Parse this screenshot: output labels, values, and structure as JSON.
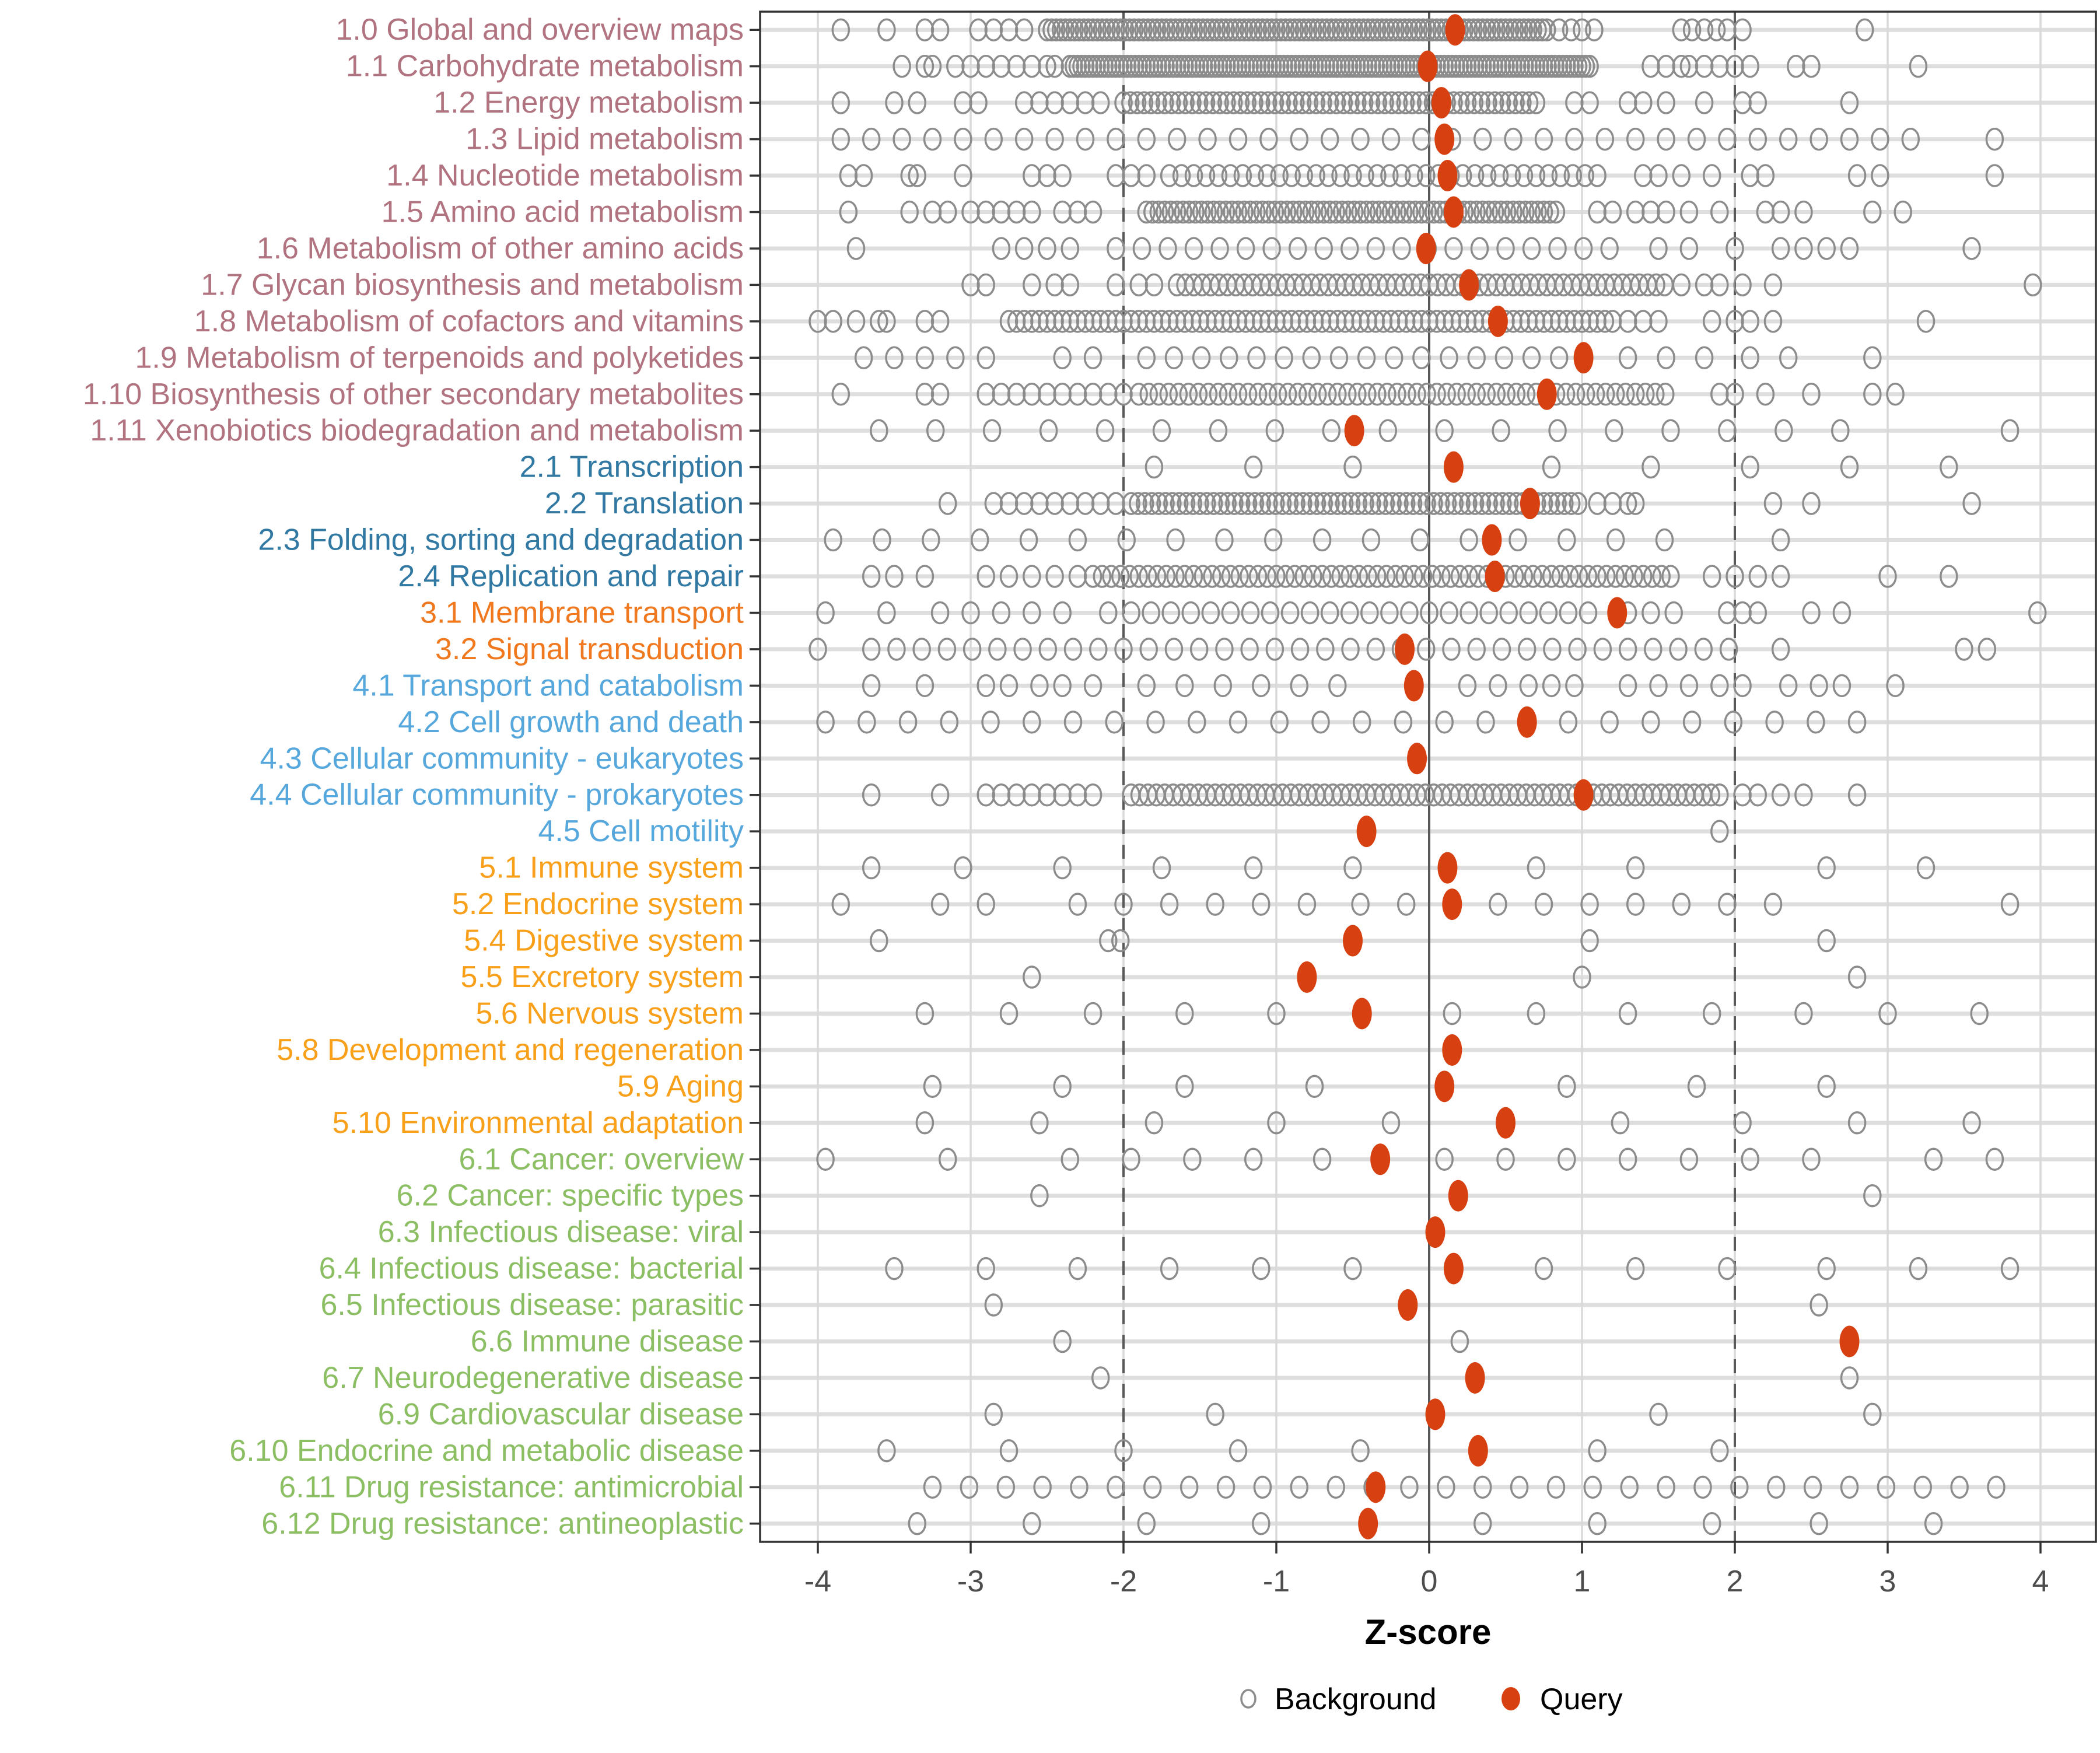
{
  "chart_data": {
    "type": "scatter",
    "variant": "strip-dot-plot",
    "title": "",
    "xlabel": "Z-score",
    "xlim": [
      -4.38,
      4.36
    ],
    "x_ticks": [
      -4,
      -3,
      -2,
      -1,
      0,
      1,
      2,
      3,
      4
    ],
    "reference_lines": {
      "solid": [
        0
      ],
      "dashed": [
        -2,
        2
      ]
    },
    "grid": true,
    "legend_position": "bottom",
    "legend": [
      {
        "label": "Background",
        "marker": "open-circle",
        "color": "#8c8c8c"
      },
      {
        "label": "Query",
        "marker": "filled-circle",
        "color": "#d74112"
      }
    ],
    "colors": {
      "query": "#d74112",
      "background_stroke": "#8c8c8c",
      "row_stripe": "#dedede",
      "gridline": "#d9d9d9",
      "reference": "#595959",
      "panel_border": "#333333",
      "tick_label": "#4d4d4d",
      "axis_title": "#000000"
    },
    "group_colors": {
      "g1": "#b0737f",
      "g2": "#3179a3",
      "g3": "#f0781e",
      "g4": "#56a7dc",
      "g5": "#f9a01b",
      "g6": "#8cbe64"
    },
    "rows": [
      {
        "label": "1.0 Global and overview maps",
        "group": "g1",
        "query": 0.17,
        "band": [
          -2.5,
          0.78,
          0.03
        ],
        "pts": [
          -3.85,
          -3.55,
          -3.3,
          -3.2,
          -2.95,
          -2.85,
          -2.75,
          -2.65,
          0.85,
          0.93,
          1.0,
          1.08,
          1.65,
          1.72,
          1.8,
          1.88,
          1.95,
          2.05,
          2.85
        ]
      },
      {
        "label": "1.1 Carbohydrate metabolism",
        "group": "g1",
        "query": -0.01,
        "band": [
          -2.35,
          1.05,
          0.025
        ],
        "pts": [
          -3.45,
          -3.3,
          -3.25,
          -3.1,
          -3.0,
          -2.9,
          -2.8,
          -2.7,
          -2.6,
          -2.5,
          -2.45,
          1.45,
          1.55,
          1.65,
          1.7,
          1.8,
          1.9,
          2.0,
          2.1,
          2.4,
          2.5,
          3.2
        ]
      },
      {
        "label": "1.2 Energy metabolism",
        "group": "g1",
        "query": 0.08,
        "band": [
          -2.0,
          0.7,
          0.045
        ],
        "pts": [
          -3.85,
          -3.5,
          -3.35,
          -3.05,
          -2.95,
          -2.65,
          -2.55,
          -2.45,
          -2.35,
          -2.25,
          -2.15,
          0.95,
          1.05,
          1.3,
          1.4,
          1.55,
          1.8,
          2.05,
          2.15,
          2.75
        ]
      },
      {
        "label": "1.3 Lipid metabolism",
        "group": "g1",
        "query": 0.1,
        "band": [
          -3.85,
          3.3,
          0.2
        ],
        "pts": [
          3.7
        ]
      },
      {
        "label": "1.4 Nucleotide metabolism",
        "group": "g1",
        "query": 0.12,
        "band": [
          -1.7,
          1.1,
          0.08
        ],
        "pts": [
          -3.8,
          -3.7,
          -3.4,
          -3.35,
          -3.05,
          -2.6,
          -2.5,
          -2.4,
          -2.05,
          -1.95,
          -1.85,
          1.4,
          1.5,
          1.65,
          1.85,
          2.1,
          2.2,
          2.8,
          2.95,
          3.7
        ]
      },
      {
        "label": "1.5 Amino acid metabolism",
        "group": "g1",
        "query": 0.16,
        "band": [
          -1.85,
          0.85,
          0.04
        ],
        "pts": [
          -3.8,
          -3.4,
          -3.25,
          -3.15,
          -3.0,
          -2.9,
          -2.8,
          -2.7,
          -2.6,
          -2.4,
          -2.3,
          -2.2,
          1.1,
          1.2,
          1.35,
          1.45,
          1.55,
          1.7,
          1.9,
          2.2,
          2.3,
          2.45,
          2.9,
          3.1
        ]
      },
      {
        "label": "1.6 Metabolism of other amino acids",
        "group": "g1",
        "query": -0.02,
        "band": [
          -2.05,
          1.25,
          0.17
        ],
        "pts": [
          -3.75,
          -2.8,
          -2.65,
          -2.5,
          -2.35,
          1.5,
          1.7,
          2.0,
          2.3,
          2.45,
          2.6,
          2.75,
          3.55
        ]
      },
      {
        "label": "1.7 Glycan biosynthesis and metabolism",
        "group": "g1",
        "query": 0.26,
        "band": [
          -1.65,
          1.55,
          0.055
        ],
        "pts": [
          -3.0,
          -2.9,
          -2.6,
          -2.45,
          -2.35,
          -2.05,
          -1.9,
          -1.8,
          1.65,
          1.8,
          1.9,
          2.05,
          2.25,
          3.95
        ]
      },
      {
        "label": "1.8 Metabolism of cofactors and vitamins",
        "group": "g1",
        "query": 0.45,
        "band": [
          -2.75,
          1.2,
          0.05
        ],
        "pts": [
          -4.0,
          -3.9,
          -3.75,
          -3.6,
          -3.55,
          -3.3,
          -3.2,
          1.3,
          1.4,
          1.5,
          1.85,
          2.0,
          2.1,
          2.25,
          3.25
        ]
      },
      {
        "label": "1.9 Metabolism of terpenoids and polyketides",
        "group": "g1",
        "query": 1.01,
        "band": [
          -1.85,
          0.9,
          0.18
        ],
        "pts": [
          -3.7,
          -3.5,
          -3.3,
          -3.1,
          -2.9,
          -2.4,
          -2.2,
          1.3,
          1.55,
          1.8,
          2.1,
          2.35,
          2.9
        ]
      },
      {
        "label": "1.10 Biosynthesis of other secondary metabolites",
        "group": "g1",
        "query": 0.77,
        "band": [
          -1.9,
          1.6,
          0.065
        ],
        "pts": [
          -3.85,
          -3.3,
          -3.2,
          -2.9,
          -2.8,
          -2.7,
          -2.6,
          -2.5,
          -2.4,
          -2.3,
          -2.2,
          -2.1,
          -2.0,
          1.9,
          2.0,
          2.2,
          2.5,
          2.9,
          3.05
        ]
      },
      {
        "label": "1.11 Xenobiotics biodegradation and metabolism",
        "group": "g1",
        "query": -0.49,
        "band": [
          -3.6,
          3.0,
          0.37
        ],
        "pts": [
          3.8
        ]
      },
      {
        "label": "2.1 Transcription",
        "group": "g2",
        "query": 0.16,
        "band": null,
        "pts": [
          -1.8,
          -1.15,
          -0.5,
          0.8,
          1.45,
          2.1,
          2.75,
          3.4
        ]
      },
      {
        "label": "2.2 Translation",
        "group": "g2",
        "query": 0.66,
        "band": [
          -1.95,
          1.0,
          0.045
        ],
        "pts": [
          -3.15,
          -2.85,
          -2.75,
          -2.65,
          -2.55,
          -2.45,
          -2.35,
          -2.25,
          -2.15,
          -2.05,
          1.1,
          1.2,
          1.3,
          1.35,
          2.25,
          2.5,
          3.55
        ]
      },
      {
        "label": "2.3 Folding, sorting and degradation",
        "group": "g2",
        "query": 0.41,
        "band": [
          -3.9,
          1.75,
          0.32
        ],
        "pts": [
          2.3
        ]
      },
      {
        "label": "2.4 Replication and repair",
        "group": "g2",
        "query": 0.43,
        "band": [
          -2.2,
          1.6,
          0.06
        ],
        "pts": [
          -3.65,
          -3.5,
          -3.3,
          -2.9,
          -2.75,
          -2.6,
          -2.45,
          -2.3,
          1.85,
          2.0,
          2.15,
          2.3,
          3.0,
          3.4
        ]
      },
      {
        "label": "3.1 Membrane transport",
        "group": "g3",
        "query": 1.23,
        "band": [
          -1.95,
          1.1,
          0.13
        ],
        "pts": [
          -3.95,
          -3.55,
          -3.2,
          -3.0,
          -2.8,
          -2.6,
          -2.4,
          -2.1,
          1.3,
          1.45,
          1.6,
          1.95,
          2.05,
          2.15,
          2.5,
          2.7,
          3.98
        ]
      },
      {
        "label": "3.2 Signal transduction",
        "group": "g3",
        "query": -0.16,
        "band": [
          -3.65,
          2.0,
          0.165
        ],
        "pts": [
          -4.0,
          2.3,
          3.5,
          3.65
        ]
      },
      {
        "label": "4.1 Transport and catabolism",
        "group": "g4",
        "query": -0.1,
        "band": null,
        "pts": [
          -3.65,
          -3.3,
          -2.9,
          -2.75,
          -2.55,
          -2.4,
          -2.2,
          -1.85,
          -1.6,
          -1.35,
          -1.1,
          -0.85,
          -0.6,
          0.25,
          0.45,
          0.65,
          0.8,
          0.95,
          1.3,
          1.5,
          1.7,
          1.9,
          2.05,
          2.35,
          2.55,
          2.7,
          3.05
        ]
      },
      {
        "label": "4.2 Cell growth and death",
        "group": "g4",
        "query": 0.64,
        "band": [
          -3.95,
          3.05,
          0.27
        ],
        "pts": []
      },
      {
        "label": "4.3 Cellular community - eukaryotes",
        "group": "g4",
        "query": -0.08,
        "band": null,
        "pts": []
      },
      {
        "label": "4.4 Cellular community - prokaryotes",
        "group": "g4",
        "query": 1.01,
        "band": [
          -1.95,
          1.9,
          0.055
        ],
        "pts": [
          -3.65,
          -3.2,
          -2.9,
          -2.8,
          -2.7,
          -2.6,
          -2.5,
          -2.4,
          -2.3,
          -2.2,
          2.05,
          2.15,
          2.3,
          2.45,
          2.8
        ]
      },
      {
        "label": "4.5 Cell motility",
        "group": "g4",
        "query": -0.41,
        "band": null,
        "pts": [
          1.9
        ]
      },
      {
        "label": "5.1 Immune system",
        "group": "g5",
        "query": 0.12,
        "band": null,
        "pts": [
          -3.65,
          -3.05,
          -2.4,
          -1.75,
          -1.15,
          -0.5,
          0.7,
          1.35,
          2.6,
          3.25
        ]
      },
      {
        "label": "5.2 Endocrine system",
        "group": "g5",
        "query": 0.15,
        "band": null,
        "pts": [
          -3.85,
          -3.2,
          -2.9,
          -2.3,
          -2.0,
          -1.7,
          -1.4,
          -1.1,
          -0.8,
          -0.45,
          -0.15,
          0.45,
          0.75,
          1.05,
          1.35,
          1.65,
          1.95,
          2.25,
          3.8
        ]
      },
      {
        "label": "5.4 Digestive system",
        "group": "g5",
        "query": -0.5,
        "band": null,
        "pts": [
          -3.6,
          -2.1,
          -2.02,
          1.05,
          2.6
        ]
      },
      {
        "label": "5.5 Excretory system",
        "group": "g5",
        "query": -0.8,
        "band": null,
        "pts": [
          -2.6,
          1.0,
          2.8
        ]
      },
      {
        "label": "5.6 Nervous system",
        "group": "g5",
        "query": -0.44,
        "band": null,
        "pts": [
          -3.3,
          -2.75,
          -2.2,
          -1.6,
          -1.0,
          0.15,
          0.7,
          1.3,
          1.85,
          2.45,
          3.0,
          3.6
        ]
      },
      {
        "label": "5.8 Development and regeneration",
        "group": "g5",
        "query": 0.15,
        "band": null,
        "pts": []
      },
      {
        "label": "5.9 Aging",
        "group": "g5",
        "query": 0.1,
        "band": null,
        "pts": [
          -3.25,
          -2.4,
          -1.6,
          -0.75,
          0.9,
          1.75,
          2.6
        ]
      },
      {
        "label": "5.10 Environmental adaptation",
        "group": "g5",
        "query": 0.5,
        "band": null,
        "pts": [
          -3.3,
          -2.55,
          -1.8,
          -1.0,
          -0.25,
          1.25,
          2.05,
          2.8,
          3.55
        ]
      },
      {
        "label": "6.1 Cancer: overview",
        "group": "g6",
        "query": -0.32,
        "band": null,
        "pts": [
          -3.95,
          -3.15,
          -2.35,
          -1.95,
          -1.55,
          -1.15,
          -0.7,
          0.1,
          0.5,
          0.9,
          1.3,
          1.7,
          2.1,
          2.5,
          3.3,
          3.7
        ]
      },
      {
        "label": "6.2 Cancer: specific types",
        "group": "g6",
        "query": 0.19,
        "band": null,
        "pts": [
          -2.55,
          2.9
        ]
      },
      {
        "label": "6.3 Infectious disease: viral",
        "group": "g6",
        "query": 0.04,
        "band": null,
        "pts": []
      },
      {
        "label": "6.4 Infectious disease: bacterial",
        "group": "g6",
        "query": 0.16,
        "band": null,
        "pts": [
          -3.5,
          -2.9,
          -2.3,
          -1.7,
          -1.1,
          -0.5,
          0.75,
          1.35,
          1.95,
          2.6,
          3.2,
          3.8
        ]
      },
      {
        "label": "6.5 Infectious disease: parasitic",
        "group": "g6",
        "query": -0.14,
        "band": null,
        "pts": [
          -2.85,
          2.55
        ]
      },
      {
        "label": "6.6 Immune disease",
        "group": "g6",
        "query": 2.75,
        "band": null,
        "pts": [
          -2.4,
          0.2
        ]
      },
      {
        "label": "6.7 Neurodegenerative disease",
        "group": "g6",
        "query": 0.3,
        "band": null,
        "pts": [
          -2.15,
          2.75
        ]
      },
      {
        "label": "6.9 Cardiovascular disease",
        "group": "g6",
        "query": 0.04,
        "band": null,
        "pts": [
          -2.85,
          -1.4,
          1.5,
          2.9
        ]
      },
      {
        "label": "6.10 Endocrine and metabolic disease",
        "group": "g6",
        "query": 0.32,
        "band": null,
        "pts": [
          -3.55,
          -2.75,
          -2.0,
          -1.25,
          -0.45,
          1.1,
          1.9
        ]
      },
      {
        "label": "6.11 Drug resistance: antimicrobial",
        "group": "g6",
        "query": -0.35,
        "band": [
          -3.25,
          3.8,
          0.24
        ],
        "pts": []
      },
      {
        "label": "6.12 Drug resistance: antineoplastic",
        "group": "g6",
        "query": -0.4,
        "band": null,
        "pts": [
          -3.35,
          -2.6,
          -1.85,
          -1.1,
          0.35,
          1.1,
          1.85,
          2.55,
          3.3
        ]
      }
    ]
  }
}
